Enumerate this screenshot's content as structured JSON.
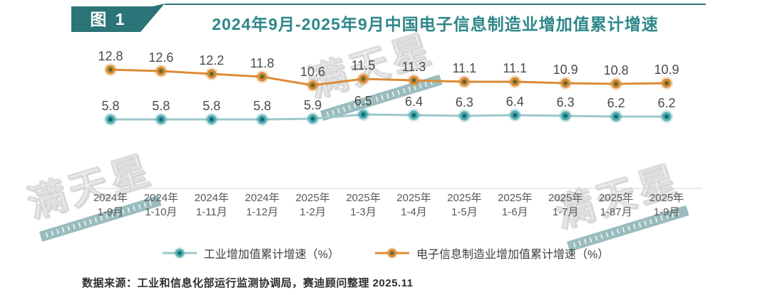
{
  "header": {
    "badge": "图 1",
    "title": "2024年9月-2025年9月中国电子信息制造业增加值累计增速"
  },
  "watermark": {
    "text": "满天星"
  },
  "footer": {
    "source": "数据来源：工业和信息化部运行监测协调局，赛迪顾问整理 2025.11"
  },
  "colors": {
    "badge_teal": "#2B7478",
    "title_teal": "#2E8689",
    "industrial_line": "#9CC8C9",
    "industrial_marker": "#54ACB0",
    "industrial_marker_inner": "#0E6B74",
    "electronics_line": "#DB8C35",
    "electronics_marker": "#D98A33",
    "electronics_marker_inner": "#5E6A2E",
    "value_label_gray": "#4A4A4A",
    "axis_label_gray": "#595959",
    "axis_line_gray": "#D4D4D4"
  },
  "chart_data": {
    "type": "line",
    "title": "2024年9月-2025年9月中国电子信息制造业增加值累计增速",
    "categories": [
      "2024年\n1-9月",
      "2024年\n1-10月",
      "2024年\n1-11月",
      "2024年\n1-12月",
      "2025年\n1-2月",
      "2025年\n1-3月",
      "2025年\n1-4月",
      "2025年\n1-5月",
      "2025年\n1-6月",
      "2025年\n1-7月",
      "2025年\n1-87月",
      "2025年\n1-9月"
    ],
    "series": [
      {
        "name": "工业增加值累计增速（%）",
        "line_color": "#9CC8C9",
        "marker_color": "#54ACB0",
        "marker_inner_color": "#0E6B74",
        "values": [
          5.8,
          5.8,
          5.8,
          5.8,
          5.9,
          6.5,
          6.4,
          6.3,
          6.4,
          6.3,
          6.2,
          6.2
        ]
      },
      {
        "name": "电子信息制造业增加值累计增速（%）",
        "line_color": "#DB8C35",
        "marker_color": "#D98A33",
        "marker_inner_color": "#5E6A2E",
        "values": [
          12.8,
          12.6,
          12.2,
          11.8,
          10.6,
          11.5,
          11.3,
          11.1,
          11.1,
          10.9,
          10.8,
          10.9
        ]
      }
    ],
    "value_labels": true,
    "grid": false,
    "legend_position": "bottom",
    "xlabel": "",
    "ylabel": "",
    "ylim": [
      0,
      14
    ]
  }
}
